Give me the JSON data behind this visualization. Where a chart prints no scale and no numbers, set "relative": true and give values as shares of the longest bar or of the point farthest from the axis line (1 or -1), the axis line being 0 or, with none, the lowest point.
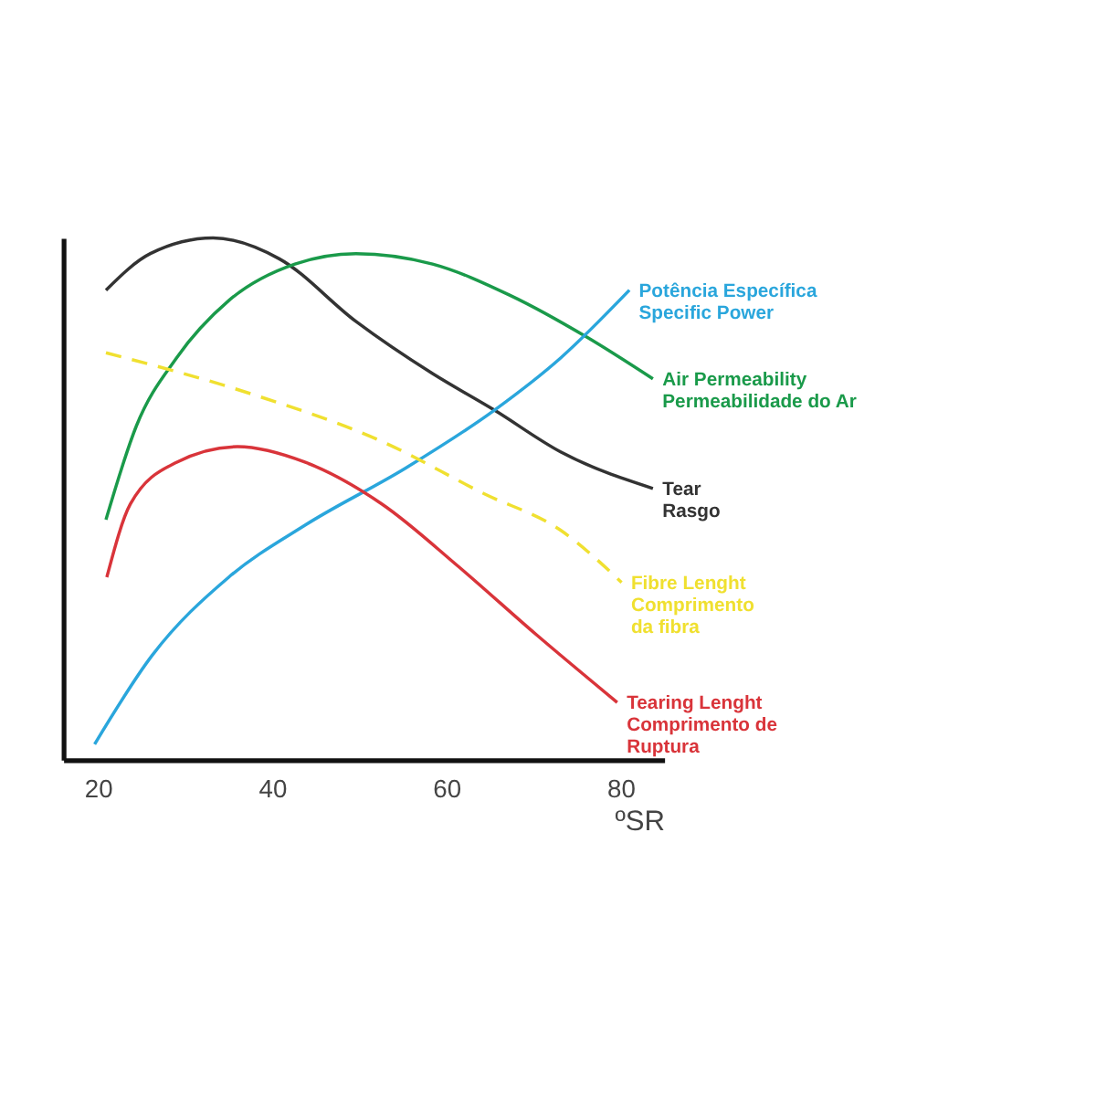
{
  "chart_data": {
    "type": "line",
    "relative": true,
    "xlabel": "ºSR",
    "xlim": [
      16,
      85
    ],
    "xticks": [
      20,
      40,
      60,
      80
    ],
    "tick_labels": "x",
    "grid": false,
    "marker": "none",
    "series": [
      {
        "name": "Tear\nRasgo",
        "color": "#333333",
        "line_style": "solid",
        "x": [
          20.9,
          26,
          33.2,
          40.8,
          49.6,
          58.4,
          65.5,
          73.1,
          83.7
        ],
        "values": [
          0.9,
          0.97,
          1.0,
          0.96,
          0.84,
          0.74,
          0.67,
          0.59,
          0.52
        ]
      },
      {
        "name": "Air Permeability\nPermeabilidade do Ar",
        "color": "#1a9a4a",
        "line_style": "solid",
        "x": [
          20.9,
          24.4,
          29,
          35,
          42.6,
          49.6,
          58.4,
          67.3,
          76.1,
          83.7
        ],
        "values": [
          0.46,
          0.64,
          0.77,
          0.88,
          0.95,
          0.97,
          0.95,
          0.89,
          0.81,
          0.73
        ]
      },
      {
        "name": "Potência Específica\nSpecific Power",
        "color": "#2aa6dc",
        "line_style": "solid",
        "x": [
          19.6,
          26.2,
          35,
          43.8,
          55.4,
          65.5,
          73.1,
          81
        ],
        "values": [
          0.03,
          0.2,
          0.35,
          0.45,
          0.56,
          0.67,
          0.77,
          0.9
        ]
      },
      {
        "name": "Fibre Lenght\nComprimento\nda fibra",
        "color": "#f0e030",
        "line_style": "dashed",
        "x": [
          20.9,
          37.8,
          52.6,
          64.3,
          73.1,
          80.1
        ],
        "values": [
          0.78,
          0.7,
          0.61,
          0.51,
          0.44,
          0.34
        ]
      },
      {
        "name": "Tearing Lenght\nComprimento de\nRuptura",
        "color": "#d9343a",
        "line_style": "solid",
        "x": [
          21,
          23.7,
          29,
          36,
          43.8,
          52.6,
          61.4,
          70.3,
          79.6
        ],
        "values": [
          0.35,
          0.49,
          0.57,
          0.6,
          0.57,
          0.49,
          0.37,
          0.24,
          0.11
        ]
      }
    ]
  }
}
